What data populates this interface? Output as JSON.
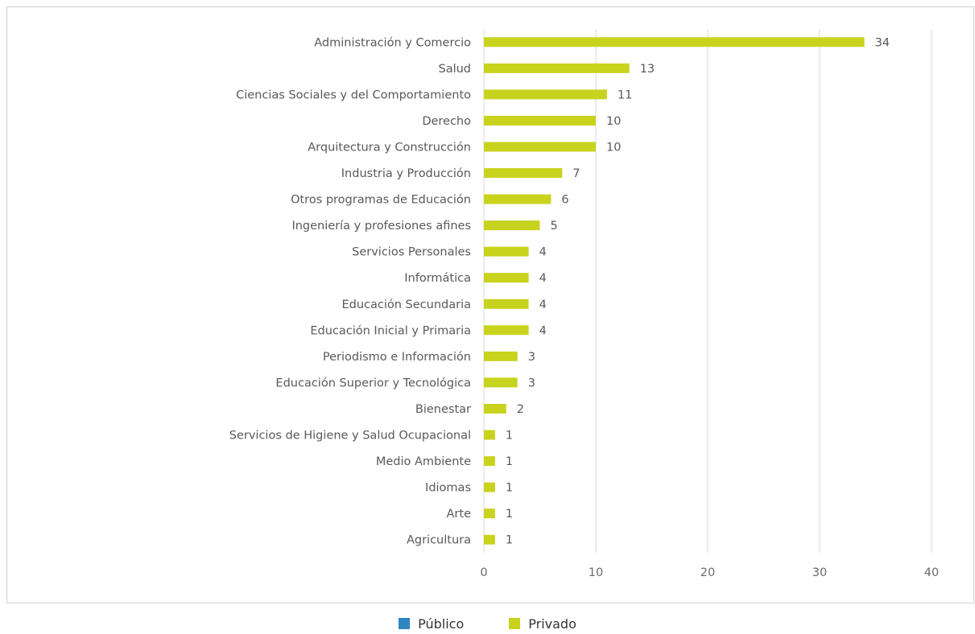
{
  "chart_data": {
    "type": "bar",
    "orientation": "horizontal",
    "categories": [
      "Administración y Comercio",
      "Salud",
      "Ciencias Sociales y del Comportamiento",
      "Derecho",
      "Arquitectura y Construcción",
      "Industria y Producción",
      "Otros programas de Educación",
      "Ingeniería y profesiones afines",
      "Servicios Personales",
      "Informática",
      "Educación Secundaria",
      "Educación Inicial y Primaria",
      "Periodismo e Información",
      "Educación Superior y Tecnológica",
      "Bienestar",
      "Servicios de Higiene y Salud Ocupacional",
      "Medio Ambiente",
      "Idiomas",
      "Arte",
      "Agricultura"
    ],
    "series": [
      {
        "name": "Público",
        "color": "#2e86c1",
        "values": [
          0,
          0,
          0,
          0,
          0,
          0,
          0,
          0,
          0,
          0,
          0,
          0,
          0,
          0,
          0,
          0,
          0,
          0,
          0,
          0
        ]
      },
      {
        "name": "Privado",
        "color": "#c8d31e",
        "values": [
          34,
          13,
          11,
          10,
          10,
          7,
          6,
          5,
          4,
          4,
          4,
          4,
          3,
          3,
          2,
          1,
          1,
          1,
          1,
          1
        ]
      }
    ],
    "x_ticks": [
      0,
      10,
      20,
      30,
      40
    ],
    "xlim": [
      0,
      40
    ],
    "grid": true,
    "legend_position": "bottom-center",
    "data_labels": true
  },
  "legend": {
    "items": [
      {
        "label": "Público",
        "color": "#2e86c1",
        "icon": "square-swatch"
      },
      {
        "label": "Privado",
        "color": "#c8d31e",
        "icon": "square-swatch"
      }
    ]
  }
}
